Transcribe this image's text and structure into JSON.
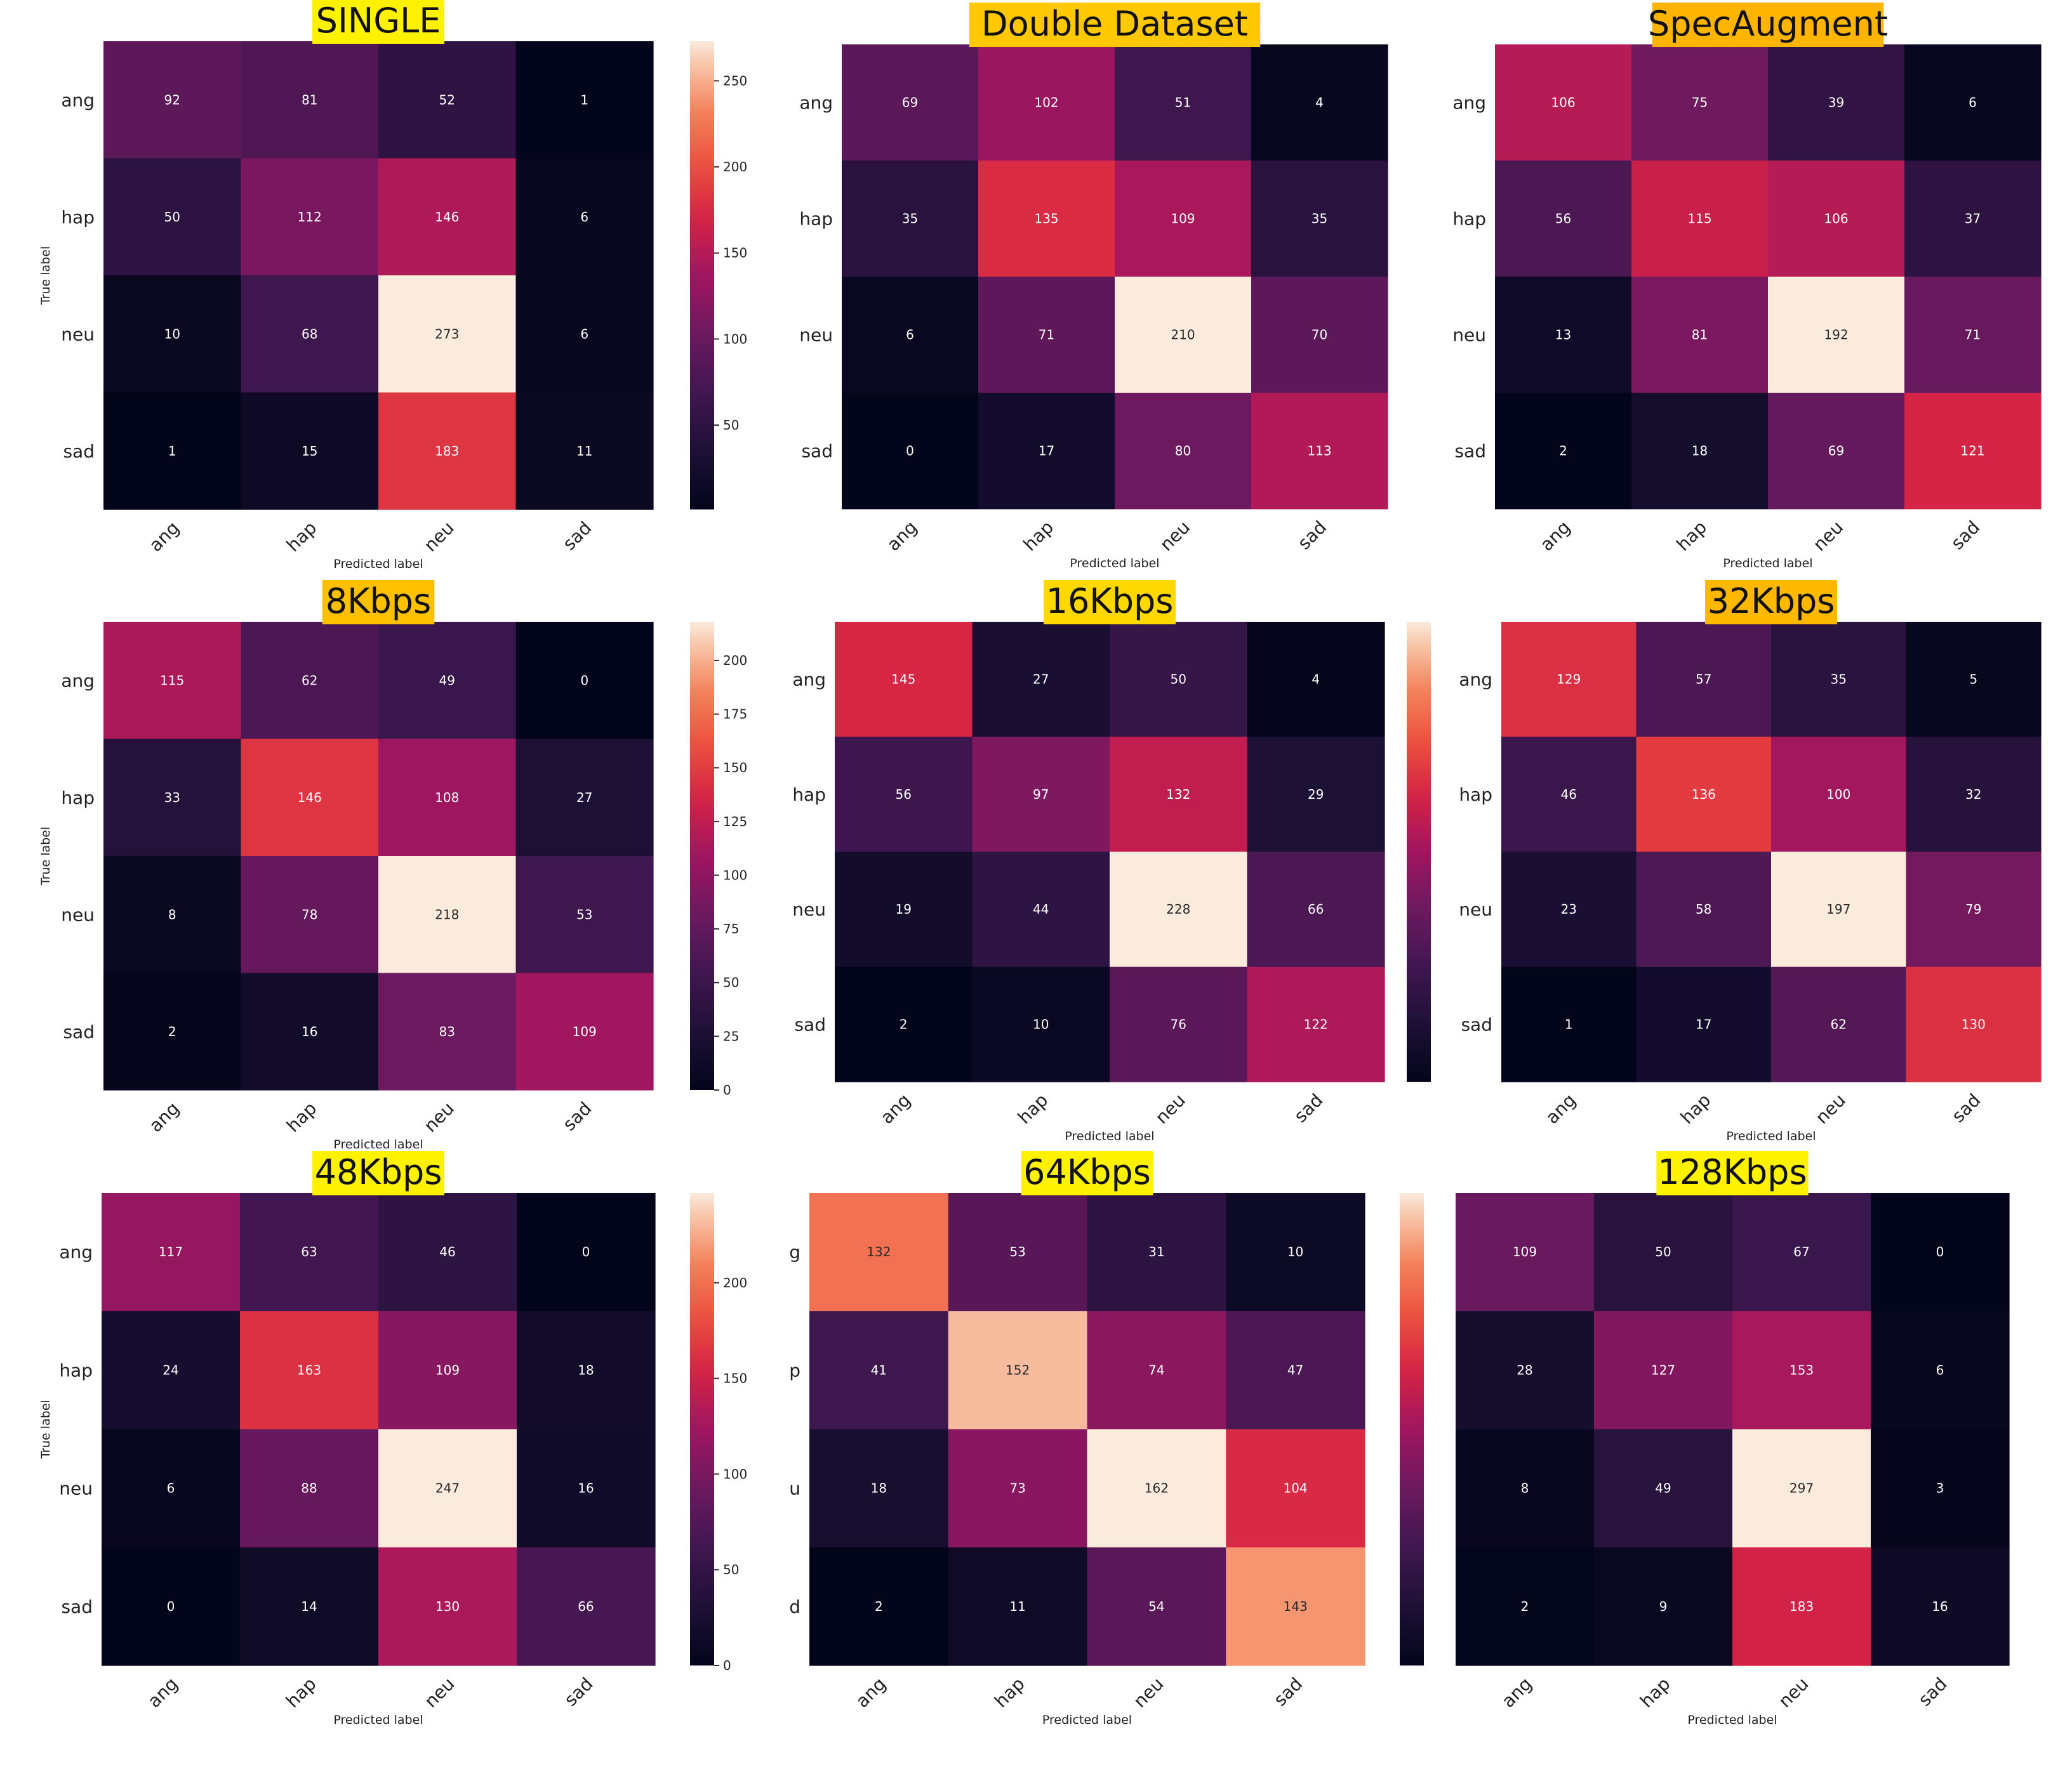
{
  "chart_data": [
    {
      "type": "heatmap",
      "title": "SINGLE",
      "title_bg": "#fff200",
      "xlabel": "Predicted label",
      "ylabel": "True label",
      "x_categories": [
        "ang",
        "hap",
        "neu",
        "sad"
      ],
      "y_categories": [
        "ang",
        "hap",
        "neu",
        "sad"
      ],
      "values": [
        [
          92,
          81,
          52,
          1
        ],
        [
          50,
          112,
          146,
          6
        ],
        [
          10,
          68,
          273,
          6
        ],
        [
          1,
          15,
          183,
          11
        ]
      ],
      "colorbar_ticks": [
        "50",
        "100",
        "150",
        "200",
        "250"
      ]
    },
    {
      "type": "heatmap",
      "title": "Double Dataset",
      "title_bg": "#ffc800",
      "xlabel": "Predicted label",
      "ylabel": "",
      "x_categories": [
        "ang",
        "hap",
        "neu",
        "sad"
      ],
      "y_categories": [
        "ang",
        "hap",
        "neu",
        "sad"
      ],
      "values": [
        [
          69,
          102,
          51,
          4
        ],
        [
          35,
          135,
          109,
          35
        ],
        [
          6,
          71,
          210,
          70
        ],
        [
          0,
          17,
          80,
          113
        ]
      ],
      "colorbar_ticks": []
    },
    {
      "type": "heatmap",
      "title": "SpecAugment",
      "title_bg": "#ffb400",
      "xlabel": "Predicted label",
      "ylabel": "",
      "x_categories": [
        "ang",
        "hap",
        "neu",
        "sad"
      ],
      "y_categories": [
        "ang",
        "hap",
        "neu",
        "sad"
      ],
      "values": [
        [
          106,
          75,
          39,
          6
        ],
        [
          56,
          115,
          106,
          37
        ],
        [
          13,
          81,
          192,
          71
        ],
        [
          2,
          18,
          69,
          121
        ]
      ],
      "colorbar_ticks": []
    },
    {
      "type": "heatmap",
      "title": "8Kbps",
      "title_bg": "#ffc000",
      "xlabel": "Predicted label",
      "ylabel": "True label",
      "x_categories": [
        "ang",
        "hap",
        "neu",
        "sad"
      ],
      "y_categories": [
        "ang",
        "hap",
        "neu",
        "sad"
      ],
      "values": [
        [
          115,
          62,
          49,
          0
        ],
        [
          33,
          146,
          108,
          27
        ],
        [
          8,
          78,
          218,
          53
        ],
        [
          2,
          16,
          83,
          109
        ]
      ],
      "colorbar_ticks": [
        "0",
        "25",
        "50",
        "75",
        "100",
        "125",
        "150",
        "175",
        "200"
      ]
    },
    {
      "type": "heatmap",
      "title": "16Kbps",
      "title_bg": "#ffd800",
      "xlabel": "Predicted label",
      "ylabel": "",
      "x_categories": [
        "ang",
        "hap",
        "neu",
        "sad"
      ],
      "y_categories": [
        "ang",
        "hap",
        "neu",
        "sad"
      ],
      "values": [
        [
          145,
          27,
          50,
          4
        ],
        [
          56,
          97,
          132,
          29
        ],
        [
          19,
          44,
          228,
          66
        ],
        [
          2,
          10,
          76,
          122
        ]
      ],
      "colorbar_ticks": []
    },
    {
      "type": "heatmap",
      "title": "32Kbps",
      "title_bg": "#ffb800",
      "xlabel": "Predicted label",
      "ylabel": "",
      "x_categories": [
        "ang",
        "hap",
        "neu",
        "sad"
      ],
      "y_categories": [
        "ang",
        "hap",
        "neu",
        "sad"
      ],
      "values": [
        [
          129,
          57,
          35,
          5
        ],
        [
          46,
          136,
          100,
          32
        ],
        [
          23,
          58,
          197,
          79
        ],
        [
          1,
          17,
          62,
          130
        ]
      ],
      "colorbar_ticks": []
    },
    {
      "type": "heatmap",
      "title": "48Kbps",
      "title_bg": "#fff200",
      "xlabel": "Predicted label",
      "ylabel": "True label",
      "x_categories": [
        "ang",
        "hap",
        "neu",
        "sad"
      ],
      "y_categories": [
        "ang",
        "hap",
        "neu",
        "sad"
      ],
      "values": [
        [
          117,
          63,
          46,
          0
        ],
        [
          24,
          163,
          109,
          18
        ],
        [
          6,
          88,
          247,
          16
        ],
        [
          0,
          14,
          130,
          66
        ]
      ],
      "colorbar_ticks": [
        "0",
        "50",
        "100",
        "150",
        "200"
      ]
    },
    {
      "type": "heatmap",
      "title": "64Kbps",
      "title_bg": "#fff200",
      "xlabel": "Predicted label",
      "ylabel": "",
      "x_categories": [
        "ang",
        "hap",
        "neu",
        "sad"
      ],
      "y_categories": [
        "g",
        "p",
        "u",
        "d"
      ],
      "values": [
        [
          132,
          53,
          31,
          10
        ],
        [
          41,
          152,
          74,
          47
        ],
        [
          18,
          73,
          162,
          104
        ],
        [
          2,
          11,
          54,
          143
        ]
      ],
      "colorbar_ticks": []
    },
    {
      "type": "heatmap",
      "title": "128Kbps",
      "title_bg": "#fff200",
      "xlabel": "Predicted label",
      "ylabel": "",
      "x_categories": [
        "ang",
        "hap",
        "neu",
        "sad"
      ],
      "y_categories": [
        "",
        "",
        "",
        ""
      ],
      "values": [
        [
          109,
          50,
          67,
          0
        ],
        [
          28,
          127,
          153,
          6
        ],
        [
          8,
          49,
          297,
          3
        ],
        [
          2,
          9,
          183,
          16
        ]
      ],
      "colorbar_ticks": []
    }
  ]
}
